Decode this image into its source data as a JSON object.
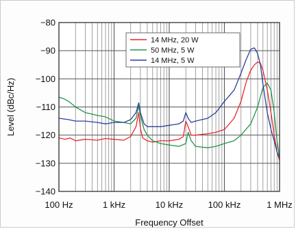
{
  "chart_data": {
    "type": "line",
    "xlabel": "Frequency Offset",
    "ylabel": "Level (dBc/Hz)",
    "x_scale": "log",
    "xlim": [
      100,
      1000000
    ],
    "ylim": [
      -140,
      -80
    ],
    "x_ticks": [
      {
        "value": 100,
        "label": "100 Hz"
      },
      {
        "value": 1000,
        "label": "1 kHz"
      },
      {
        "value": 10000,
        "label": "10 kHz"
      },
      {
        "value": 100000,
        "label": "100 kHz"
      },
      {
        "value": 1000000,
        "label": "1 MHz"
      }
    ],
    "y_ticks": [
      {
        "value": -80,
        "label": "−80"
      },
      {
        "value": -90,
        "label": "−90"
      },
      {
        "value": -100,
        "label": "−100"
      },
      {
        "value": -110,
        "label": "−110"
      },
      {
        "value": -120,
        "label": "−120"
      },
      {
        "value": -130,
        "label": "−130"
      },
      {
        "value": -140,
        "label": "−140"
      }
    ],
    "grid": true,
    "legend_position": "top-center",
    "series": [
      {
        "name": "14 MHz,  20 W",
        "color": "#e8262b",
        "points": [
          [
            100,
            -121
          ],
          [
            130,
            -121.5
          ],
          [
            160,
            -121
          ],
          [
            200,
            -122
          ],
          [
            300,
            -121.5
          ],
          [
            500,
            -121.8
          ],
          [
            700,
            -121.2
          ],
          [
            1000,
            -121.5
          ],
          [
            1500,
            -121.8
          ],
          [
            2000,
            -120.5
          ],
          [
            2500,
            -117
          ],
          [
            2800,
            -112
          ],
          [
            3000,
            -117.5
          ],
          [
            3300,
            -121
          ],
          [
            4000,
            -122
          ],
          [
            5000,
            -122.5
          ],
          [
            7000,
            -122
          ],
          [
            10000,
            -122
          ],
          [
            15000,
            -121.5
          ],
          [
            18000,
            -120.5
          ],
          [
            20000,
            -115
          ],
          [
            22000,
            -117
          ],
          [
            25000,
            -120
          ],
          [
            30000,
            -120
          ],
          [
            50000,
            -119.5
          ],
          [
            70000,
            -119
          ],
          [
            100000,
            -118
          ],
          [
            150000,
            -114
          ],
          [
            200000,
            -108
          ],
          [
            250000,
            -101
          ],
          [
            300000,
            -97
          ],
          [
            350000,
            -95
          ],
          [
            400000,
            -94
          ],
          [
            450000,
            -94.5
          ],
          [
            500000,
            -97
          ],
          [
            600000,
            -104
          ],
          [
            700000,
            -112
          ],
          [
            800000,
            -120
          ],
          [
            900000,
            -126
          ],
          [
            1000000,
            -129
          ]
        ]
      },
      {
        "name": "50 MHz,  5 W",
        "color": "#22934a",
        "points": [
          [
            100,
            -106.5
          ],
          [
            120,
            -107
          ],
          [
            150,
            -108
          ],
          [
            200,
            -110
          ],
          [
            300,
            -112
          ],
          [
            500,
            -113
          ],
          [
            700,
            -113.5
          ],
          [
            1000,
            -115
          ],
          [
            1500,
            -115.5
          ],
          [
            2000,
            -116
          ],
          [
            2500,
            -114
          ],
          [
            2800,
            -109.5
          ],
          [
            3000,
            -113
          ],
          [
            3500,
            -118
          ],
          [
            4000,
            -120
          ],
          [
            5000,
            -122
          ],
          [
            7000,
            -123
          ],
          [
            10000,
            -123.5
          ],
          [
            15000,
            -124
          ],
          [
            20000,
            -123
          ],
          [
            22000,
            -119
          ],
          [
            25000,
            -122
          ],
          [
            30000,
            -124
          ],
          [
            50000,
            -124.5
          ],
          [
            70000,
            -124
          ],
          [
            100000,
            -123
          ],
          [
            150000,
            -122
          ],
          [
            200000,
            -120
          ],
          [
            300000,
            -116
          ],
          [
            400000,
            -110
          ],
          [
            500000,
            -103
          ],
          [
            600000,
            -101.5
          ],
          [
            700000,
            -104
          ],
          [
            800000,
            -112
          ],
          [
            900000,
            -122
          ],
          [
            1000000,
            -128
          ]
        ]
      },
      {
        "name": "14 MHz,  5 W",
        "color": "#2b3f9c",
        "points": [
          [
            100,
            -114
          ],
          [
            150,
            -114.5
          ],
          [
            200,
            -115
          ],
          [
            300,
            -115
          ],
          [
            500,
            -115.5
          ],
          [
            700,
            -116
          ],
          [
            1000,
            -115.5
          ],
          [
            1500,
            -115.5
          ],
          [
            2000,
            -114.5
          ],
          [
            2500,
            -112
          ],
          [
            2800,
            -108.5
          ],
          [
            3000,
            -112
          ],
          [
            3500,
            -116
          ],
          [
            4000,
            -117
          ],
          [
            5000,
            -117
          ],
          [
            7000,
            -117
          ],
          [
            10000,
            -116.5
          ],
          [
            15000,
            -116
          ],
          [
            18000,
            -115
          ],
          [
            20000,
            -112
          ],
          [
            22000,
            -114
          ],
          [
            25000,
            -115.5
          ],
          [
            30000,
            -115
          ],
          [
            50000,
            -114
          ],
          [
            70000,
            -112
          ],
          [
            100000,
            -108
          ],
          [
            150000,
            -104
          ],
          [
            200000,
            -98
          ],
          [
            250000,
            -93
          ],
          [
            300000,
            -89.5
          ],
          [
            350000,
            -89
          ],
          [
            400000,
            -91
          ],
          [
            450000,
            -95
          ],
          [
            500000,
            -102
          ],
          [
            600000,
            -112
          ],
          [
            700000,
            -118
          ],
          [
            800000,
            -122
          ],
          [
            900000,
            -126
          ],
          [
            1000000,
            -128
          ]
        ]
      }
    ]
  }
}
